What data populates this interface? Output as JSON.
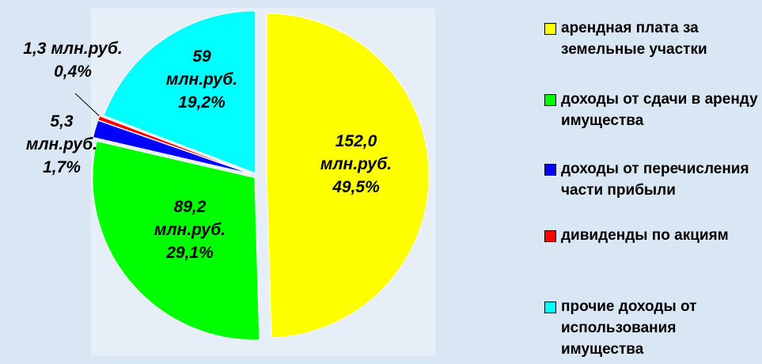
{
  "chart_data": {
    "type": "pie",
    "categories": [
      "арендная плата за земельные участки",
      "доходы от сдачи в аренду имущества",
      "доходы от перечисления части прибыли",
      "дивиденды по акциям",
      "прочие доходы от использования имущества"
    ],
    "values": [
      152.0,
      89.2,
      5.3,
      1.3,
      59
    ],
    "value_labels": [
      "152,0",
      "89,2",
      "5,3",
      "1,3",
      "59"
    ],
    "unit": "млн.руб.",
    "percents": [
      49.5,
      29.1,
      1.7,
      0.4,
      19.2
    ],
    "percent_labels": [
      "49,5%",
      "29,1%",
      "1,7%",
      "0,4%",
      "19,2%"
    ],
    "colors": [
      "#ffff00",
      "#00ff00",
      "#0000ff",
      "#ff0000",
      "#00ffff"
    ],
    "legend": "right"
  }
}
